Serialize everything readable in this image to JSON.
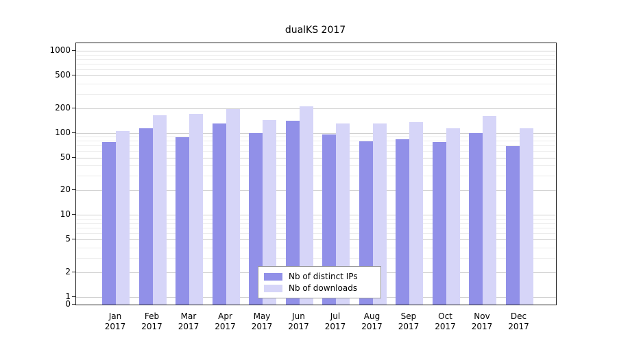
{
  "chart_data": {
    "type": "bar",
    "title": "dualKS 2017",
    "categories": [
      "Jan",
      "Feb",
      "Mar",
      "Apr",
      "May",
      "Jun",
      "Jul",
      "Aug",
      "Sep",
      "Oct",
      "Nov",
      "Dec"
    ],
    "category_year": "2017",
    "series": [
      {
        "name": "Nb of distinct IPs",
        "color": "#9190e8",
        "values": [
          78,
          113,
          88,
          130,
          100,
          140,
          96,
          79,
          84,
          77,
          99,
          69
        ]
      },
      {
        "name": "Nb of downloads",
        "color": "#d6d5f8",
        "values": [
          105,
          165,
          172,
          195,
          145,
          210,
          130,
          130,
          135,
          115,
          160,
          113
        ]
      }
    ],
    "y_ticks": [
      0,
      1,
      2,
      5,
      10,
      20,
      50,
      100,
      200,
      500,
      1000
    ],
    "y_minor_ticks": [
      3,
      4,
      6,
      7,
      8,
      9,
      30,
      40,
      60,
      70,
      80,
      90,
      300,
      400,
      600,
      700,
      800,
      900
    ],
    "y_scale": "log",
    "ylim": [
      0,
      1000
    ],
    "grid": true,
    "legend_position": "bottom-center",
    "colors": {
      "grid_major": "#cfcfcf",
      "grid_minor": "#ebebeb",
      "axis": "#222222",
      "background": "#ffffff"
    }
  }
}
